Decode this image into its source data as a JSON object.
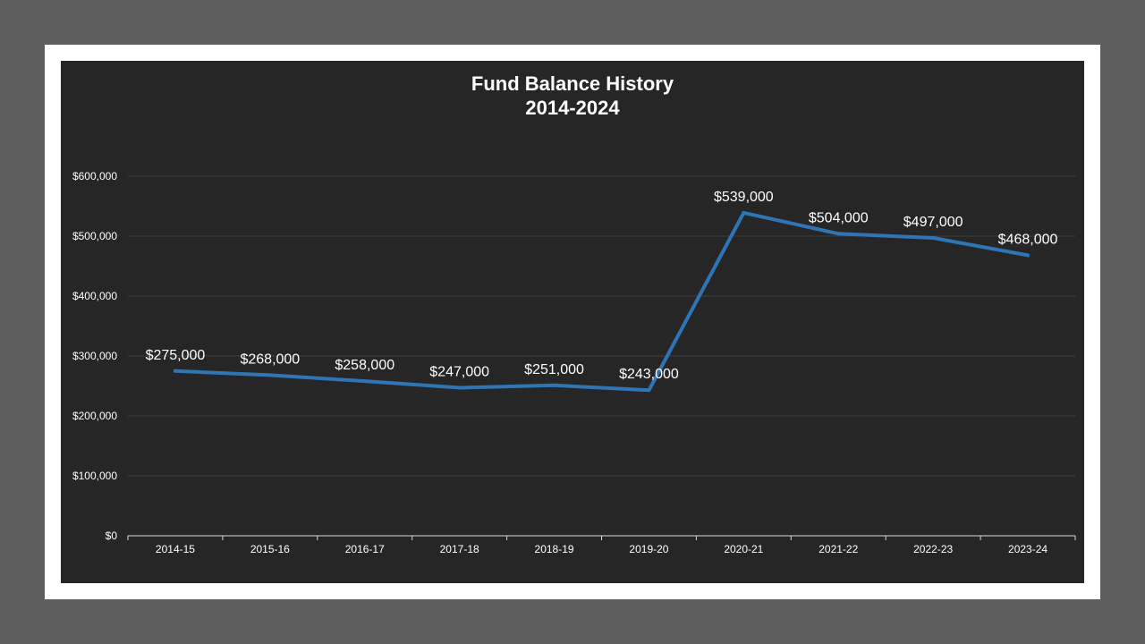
{
  "chart_data": {
    "type": "line",
    "title_lines": [
      "Fund Balance History",
      "2014-2024"
    ],
    "categories": [
      "2014-15",
      "2015-16",
      "2016-17",
      "2017-18",
      "2018-19",
      "2019-20",
      "2020-21",
      "2021-22",
      "2022-23",
      "2023-24"
    ],
    "values": [
      275000,
      268000,
      258000,
      247000,
      251000,
      243000,
      539000,
      504000,
      497000,
      468000
    ],
    "data_labels": [
      "$275,000",
      "$268,000",
      "$258,000",
      "$247,000",
      "$251,000",
      "$243,000",
      "$539,000",
      "$504,000",
      "$497,000",
      "$468,000"
    ],
    "y_ticks": [
      0,
      100000,
      200000,
      300000,
      400000,
      500000,
      600000
    ],
    "y_tick_labels": [
      "$0",
      "$100,000",
      "$200,000",
      "$300,000",
      "$400,000",
      "$500,000",
      "$600,000"
    ],
    "ylim": [
      0,
      600000
    ],
    "xlabel": "",
    "ylabel": "",
    "grid": true,
    "legend": false,
    "colors": {
      "line": "#2e75b6",
      "background": "#262626",
      "frame": "#ffffff",
      "outer": "#5e5e5e",
      "grid": "#3f3f3f",
      "axis": "#d9d9d9",
      "text": "#ffffff"
    }
  }
}
